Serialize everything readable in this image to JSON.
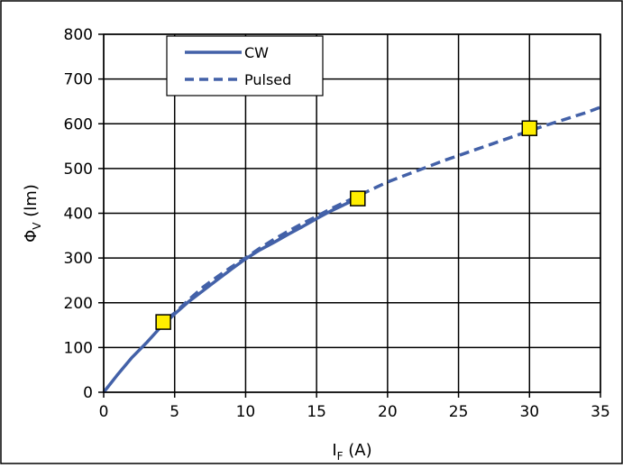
{
  "chart_data": {
    "type": "line",
    "xlabel": {
      "main": "I",
      "sub": "F",
      "unit": " (A)"
    },
    "ylabel": {
      "main": "Φ",
      "sub": "V",
      "unit": " (lm)"
    },
    "xlim": [
      0,
      35
    ],
    "ylim": [
      0,
      800
    ],
    "xticks": [
      0,
      5,
      10,
      15,
      20,
      25,
      30,
      35
    ],
    "yticks": [
      0,
      100,
      200,
      300,
      400,
      500,
      600,
      700,
      800
    ],
    "grid": true,
    "legend_position": "top-left",
    "series": [
      {
        "name": "CW",
        "style": "solid",
        "color": "#4361a8",
        "x": [
          0,
          1,
          2,
          3,
          4,
          5,
          6,
          7,
          8,
          9,
          10,
          11,
          12,
          13,
          14,
          15,
          16,
          17,
          18
        ],
        "y": [
          0,
          40,
          78,
          110,
          145,
          175,
          203,
          227,
          251,
          275,
          298,
          318,
          335,
          353,
          370,
          388,
          405,
          420,
          435
        ]
      },
      {
        "name": "Pulsed",
        "style": "dashed",
        "color": "#4361a8",
        "x": [
          4.5,
          5,
          6,
          7,
          8,
          9,
          10,
          11,
          12,
          13,
          14,
          15,
          16,
          17,
          18,
          19,
          20,
          21,
          22,
          23,
          24,
          25,
          26,
          27,
          28,
          29,
          30,
          31,
          32,
          33,
          34,
          35
        ],
        "y": [
          165,
          177,
          207,
          235,
          258,
          280,
          300,
          322,
          342,
          360,
          377,
          393,
          410,
          425,
          440,
          455,
          470,
          482,
          494,
          506,
          518,
          529,
          540,
          551,
          562,
          573,
          584,
          595,
          605,
          615,
          625,
          637
        ]
      }
    ],
    "markers": {
      "color": "#ffee00",
      "edge_color": "#000000",
      "points": [
        {
          "x": 4.2,
          "y": 157
        },
        {
          "x": 17.9,
          "y": 433
        },
        {
          "x": 30,
          "y": 590
        }
      ]
    }
  }
}
